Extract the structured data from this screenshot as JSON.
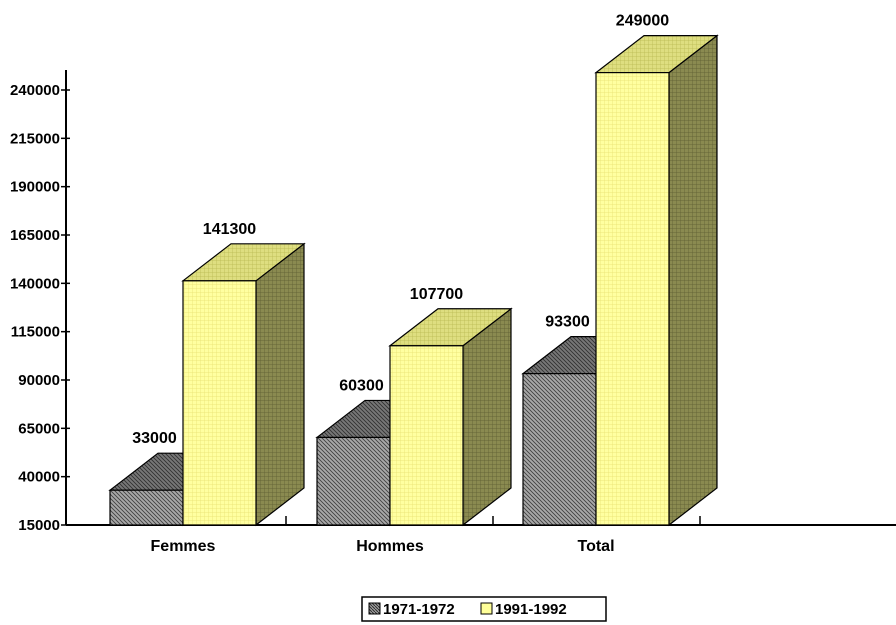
{
  "chart_data": {
    "type": "bar",
    "categories": [
      "Femmes",
      "Hommes",
      "Total"
    ],
    "series": [
      {
        "name": "1971-1972",
        "values": [
          33000,
          60300,
          93300
        ],
        "color": "#808080"
      },
      {
        "name": "1991-1992",
        "values": [
          141300,
          107700,
          249000
        ],
        "color": "#ffff99"
      }
    ],
    "ylim": [
      15000,
      240000
    ],
    "yticks": [
      15000,
      40000,
      65000,
      90000,
      115000,
      140000,
      165000,
      190000,
      215000,
      240000
    ],
    "legend_position": "bottom-center",
    "grid": false,
    "style": "3d-bar"
  }
}
